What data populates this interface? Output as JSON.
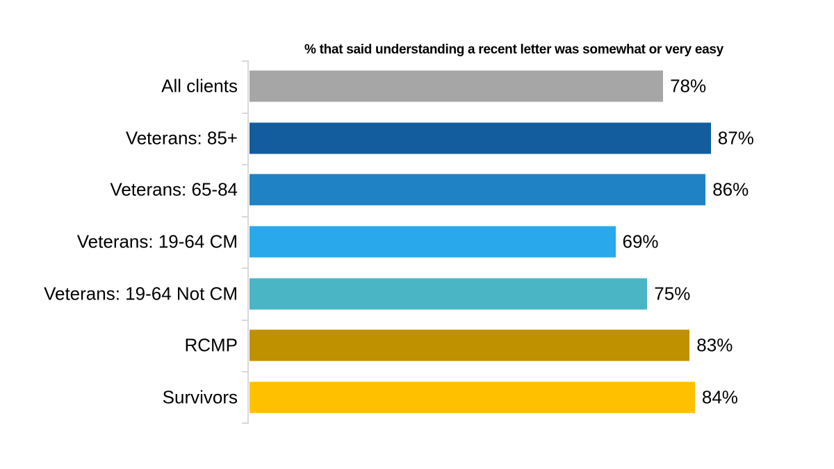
{
  "chart_data": {
    "type": "bar",
    "orientation": "horizontal",
    "title": "% that said understanding a recent letter was somewhat or very easy",
    "categories": [
      "All clients",
      "Veterans: 85+",
      "Veterans: 65-84",
      "Veterans: 19-64 CM",
      "Veterans: 19-64 Not CM",
      "RCMP",
      "Survivors"
    ],
    "values": [
      78,
      87,
      86,
      69,
      75,
      83,
      84
    ],
    "value_labels": [
      "78%",
      "87%",
      "86%",
      "69%",
      "75%",
      "83%",
      "84%"
    ],
    "bar_colors": [
      "#A6A6A6",
      "#135D9E",
      "#1F82C4",
      "#29A9EB",
      "#4AB5C4",
      "#BF9000",
      "#FFC000"
    ],
    "xlim": [
      0,
      100
    ],
    "xlabel": "",
    "ylabel": "",
    "grid": false,
    "legend": false,
    "axis_color": "#D9D9D9",
    "text_color": "#000000",
    "background_color": "#FFFFFF"
  }
}
